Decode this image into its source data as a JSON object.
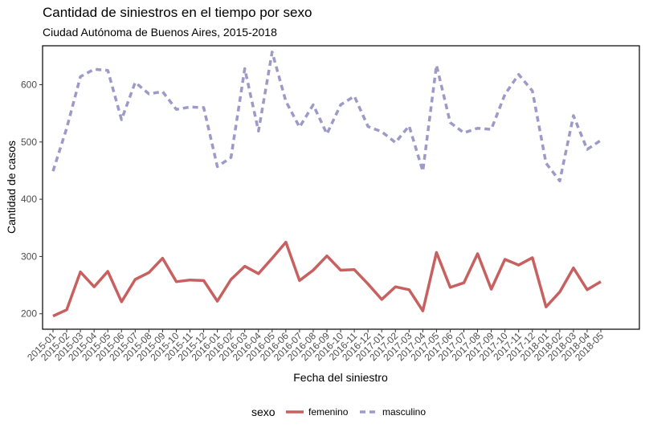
{
  "chart_data": {
    "type": "line",
    "title": "Cantidad de siniestros en el tiempo por sexo",
    "subtitle": "Ciudad Autónoma de Buenos Aires, 2015-2018",
    "xlabel": "Fecha del siniestro",
    "ylabel": "Cantidad de casos",
    "ylim": [
      173,
      668
    ],
    "yticks": [
      200,
      300,
      400,
      500,
      600
    ],
    "grid": false,
    "legend_position": "bottom",
    "legend_title": "sexo",
    "categories": [
      "2015-01",
      "2015-02",
      "2015-03",
      "2015-04",
      "2015-05",
      "2015-06",
      "2015-07",
      "2015-08",
      "2015-09",
      "2015-10",
      "2015-11",
      "2015-12",
      "2016-01",
      "2016-02",
      "2016-03",
      "2016-04",
      "2016-05",
      "2016-06",
      "2016-07",
      "2016-08",
      "2016-09",
      "2016-10",
      "2016-11",
      "2016-12",
      "2017-01",
      "2017-02",
      "2017-03",
      "2017-04",
      "2017-05",
      "2017-06",
      "2017-07",
      "2017-08",
      "2017-09",
      "2017-10",
      "2017-11",
      "2017-12",
      "2018-01",
      "2018-02",
      "2018-03",
      "2018-04",
      "2018-05"
    ],
    "series": [
      {
        "name": "femenino",
        "color": "#c86060",
        "style": "solid",
        "values": [
          196,
          207,
          273,
          247,
          274,
          221,
          260,
          272,
          297,
          256,
          259,
          258,
          222,
          260,
          283,
          270,
          297,
          325,
          258,
          276,
          301,
          276,
          277,
          252,
          225,
          247,
          242,
          205,
          307,
          246,
          254,
          305,
          243,
          295,
          285,
          298,
          212,
          238,
          280,
          242,
          256
        ]
      },
      {
        "name": "masculino",
        "color": "#9e9ac8",
        "style": "dashed",
        "values": [
          449,
          524,
          614,
          627,
          625,
          539,
          604,
          584,
          588,
          557,
          561,
          560,
          457,
          473,
          628,
          519,
          657,
          571,
          526,
          565,
          514,
          565,
          580,
          527,
          518,
          499,
          528,
          449,
          634,
          534,
          516,
          524,
          522,
          583,
          618,
          589,
          463,
          432,
          546,
          487,
          503
        ]
      }
    ]
  }
}
